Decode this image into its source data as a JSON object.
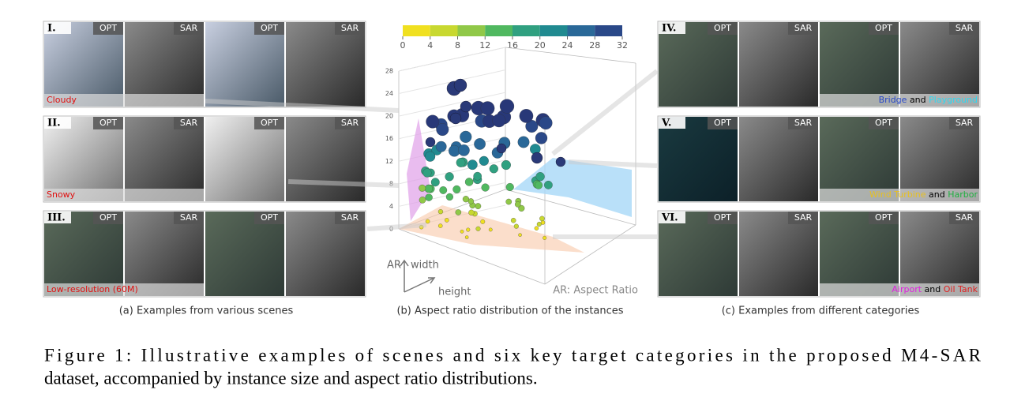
{
  "panel_a": {
    "caption": "(a) Examples from various scenes",
    "rows": [
      {
        "numeral": "I.",
        "scene": "Cloudy",
        "tiles": [
          "OPT",
          "SAR",
          "OPT",
          "SAR"
        ]
      },
      {
        "numeral": "II.",
        "scene": "Snowy",
        "tiles": [
          "OPT",
          "SAR",
          "OPT",
          "SAR"
        ]
      },
      {
        "numeral": "III.",
        "scene": "Low-resolution (60M)",
        "tiles": [
          "OPT",
          "SAR",
          "OPT",
          "SAR"
        ]
      }
    ]
  },
  "panel_b": {
    "caption": "(b) Aspect ratio distribution of the instances",
    "colorbar_ticks": [
      0,
      4,
      8,
      12,
      16,
      20,
      24,
      28,
      32
    ],
    "z_ticks": [
      0,
      4,
      8,
      12,
      16,
      20,
      24,
      28
    ],
    "axis_ar": "AR",
    "axis_width": "width",
    "axis_height": "height",
    "legend": "AR: Aspect Ratio"
  },
  "panel_c": {
    "caption": "(c) Examples from different categories",
    "rows": [
      {
        "numeral": "IV.",
        "tiles": [
          "OPT",
          "SAR",
          "OPT",
          "SAR"
        ],
        "labels": [
          {
            "text": "Bridge",
            "color": "#2848c8"
          },
          {
            "text": "and",
            "color": "#000000"
          },
          {
            "text": "Playground",
            "color": "#30d8f0"
          }
        ]
      },
      {
        "numeral": "V.",
        "tiles": [
          "OPT",
          "SAR",
          "OPT",
          "SAR"
        ],
        "labels": [
          {
            "text": "Wind Turbine",
            "color": "#e8c020"
          },
          {
            "text": "and",
            "color": "#000000"
          },
          {
            "text": "Harbor",
            "color": "#20b040"
          }
        ]
      },
      {
        "numeral": "VI.",
        "tiles": [
          "OPT",
          "SAR",
          "OPT",
          "SAR"
        ],
        "labels": [
          {
            "text": "Airport",
            "color": "#e020e0"
          },
          {
            "text": "and",
            "color": "#000000"
          },
          {
            "text": "Oil Tank",
            "color": "#e02020"
          }
        ]
      }
    ]
  },
  "figure_caption": [
    "Figure 1: Illustrative examples of scenes and six key target categories in the proposed M4-SAR",
    "dataset, accompanied by instance size and aspect ratio distributions."
  ]
}
